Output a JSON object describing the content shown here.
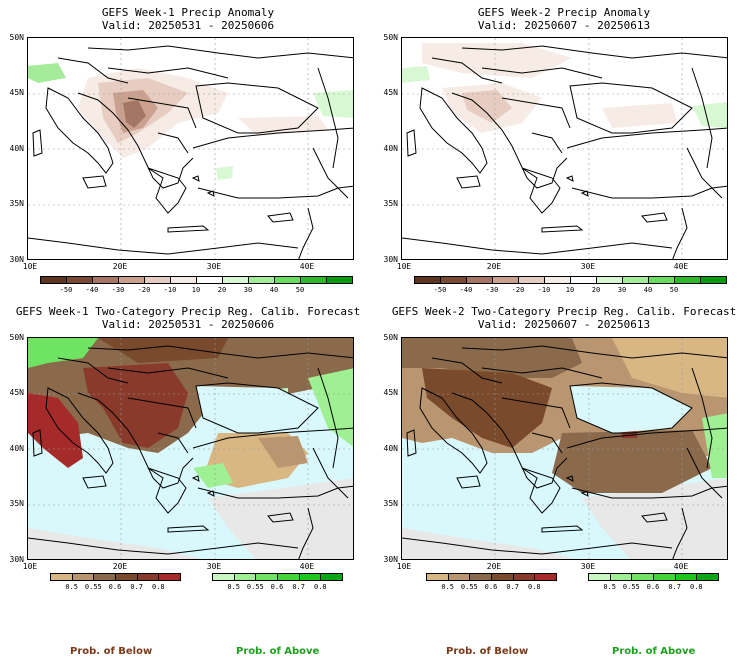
{
  "panels": [
    {
      "title": "GEFS Week-1 Precip Anomaly",
      "subtitle": "Valid: 20250531 - 20250606"
    },
    {
      "title": "GEFS Week-2 Precip Anomaly",
      "subtitle": "Valid: 20250607 - 20250613"
    },
    {
      "title": "GEFS Week-1 Two-Category Precip Reg. Calib. Forecast",
      "subtitle": "Valid: 20250531 - 20250606"
    },
    {
      "title": "GEFS Week-2 Two-Category Precip Reg. Calib. Forecast",
      "subtitle": "Valid: 20250607 - 20250613"
    }
  ],
  "lat_labels": [
    "50N",
    "45N",
    "40N",
    "35N",
    "30N"
  ],
  "lon_labels": [
    "10E",
    "20E",
    "30E",
    "40E"
  ],
  "anomaly_colorbar": {
    "labels": [
      "-50",
      "-40",
      "-30",
      "-20",
      "-10",
      "10",
      "20",
      "30",
      "40",
      "50"
    ],
    "colors": [
      "#5e3423",
      "#7b4a35",
      "#a57663",
      "#caa08f",
      "#e7cdc1",
      "#f6ebe5",
      "#ffffff",
      "#d8f8d4",
      "#a5ec9a",
      "#6cdc60",
      "#2fb82a",
      "#0a9a12"
    ]
  },
  "below_colorbar": {
    "labels": [
      "0.5",
      "0.55",
      "0.6",
      "0.7",
      "0.8"
    ],
    "colors": [
      "#d8b783",
      "#b99570",
      "#8b6a4c",
      "#7a4a2c",
      "#8a3a2b",
      "#a52a2a"
    ]
  },
  "above_colorbar": {
    "labels": [
      "0.5",
      "0.55",
      "0.6",
      "0.7",
      "0.8"
    ],
    "colors": [
      "#c8f7c4",
      "#9ef093",
      "#6fe462",
      "#44d43a",
      "#1fc41f",
      "#0aa512"
    ]
  },
  "prob_labels": {
    "below": "Prob. of Below",
    "above": "Prob. of Above",
    "below_color": "#7a3a1a",
    "above_color": "#1ea01e"
  },
  "colors": {
    "sea": "#d8f8fc",
    "no_data": "#e8e8e8"
  }
}
